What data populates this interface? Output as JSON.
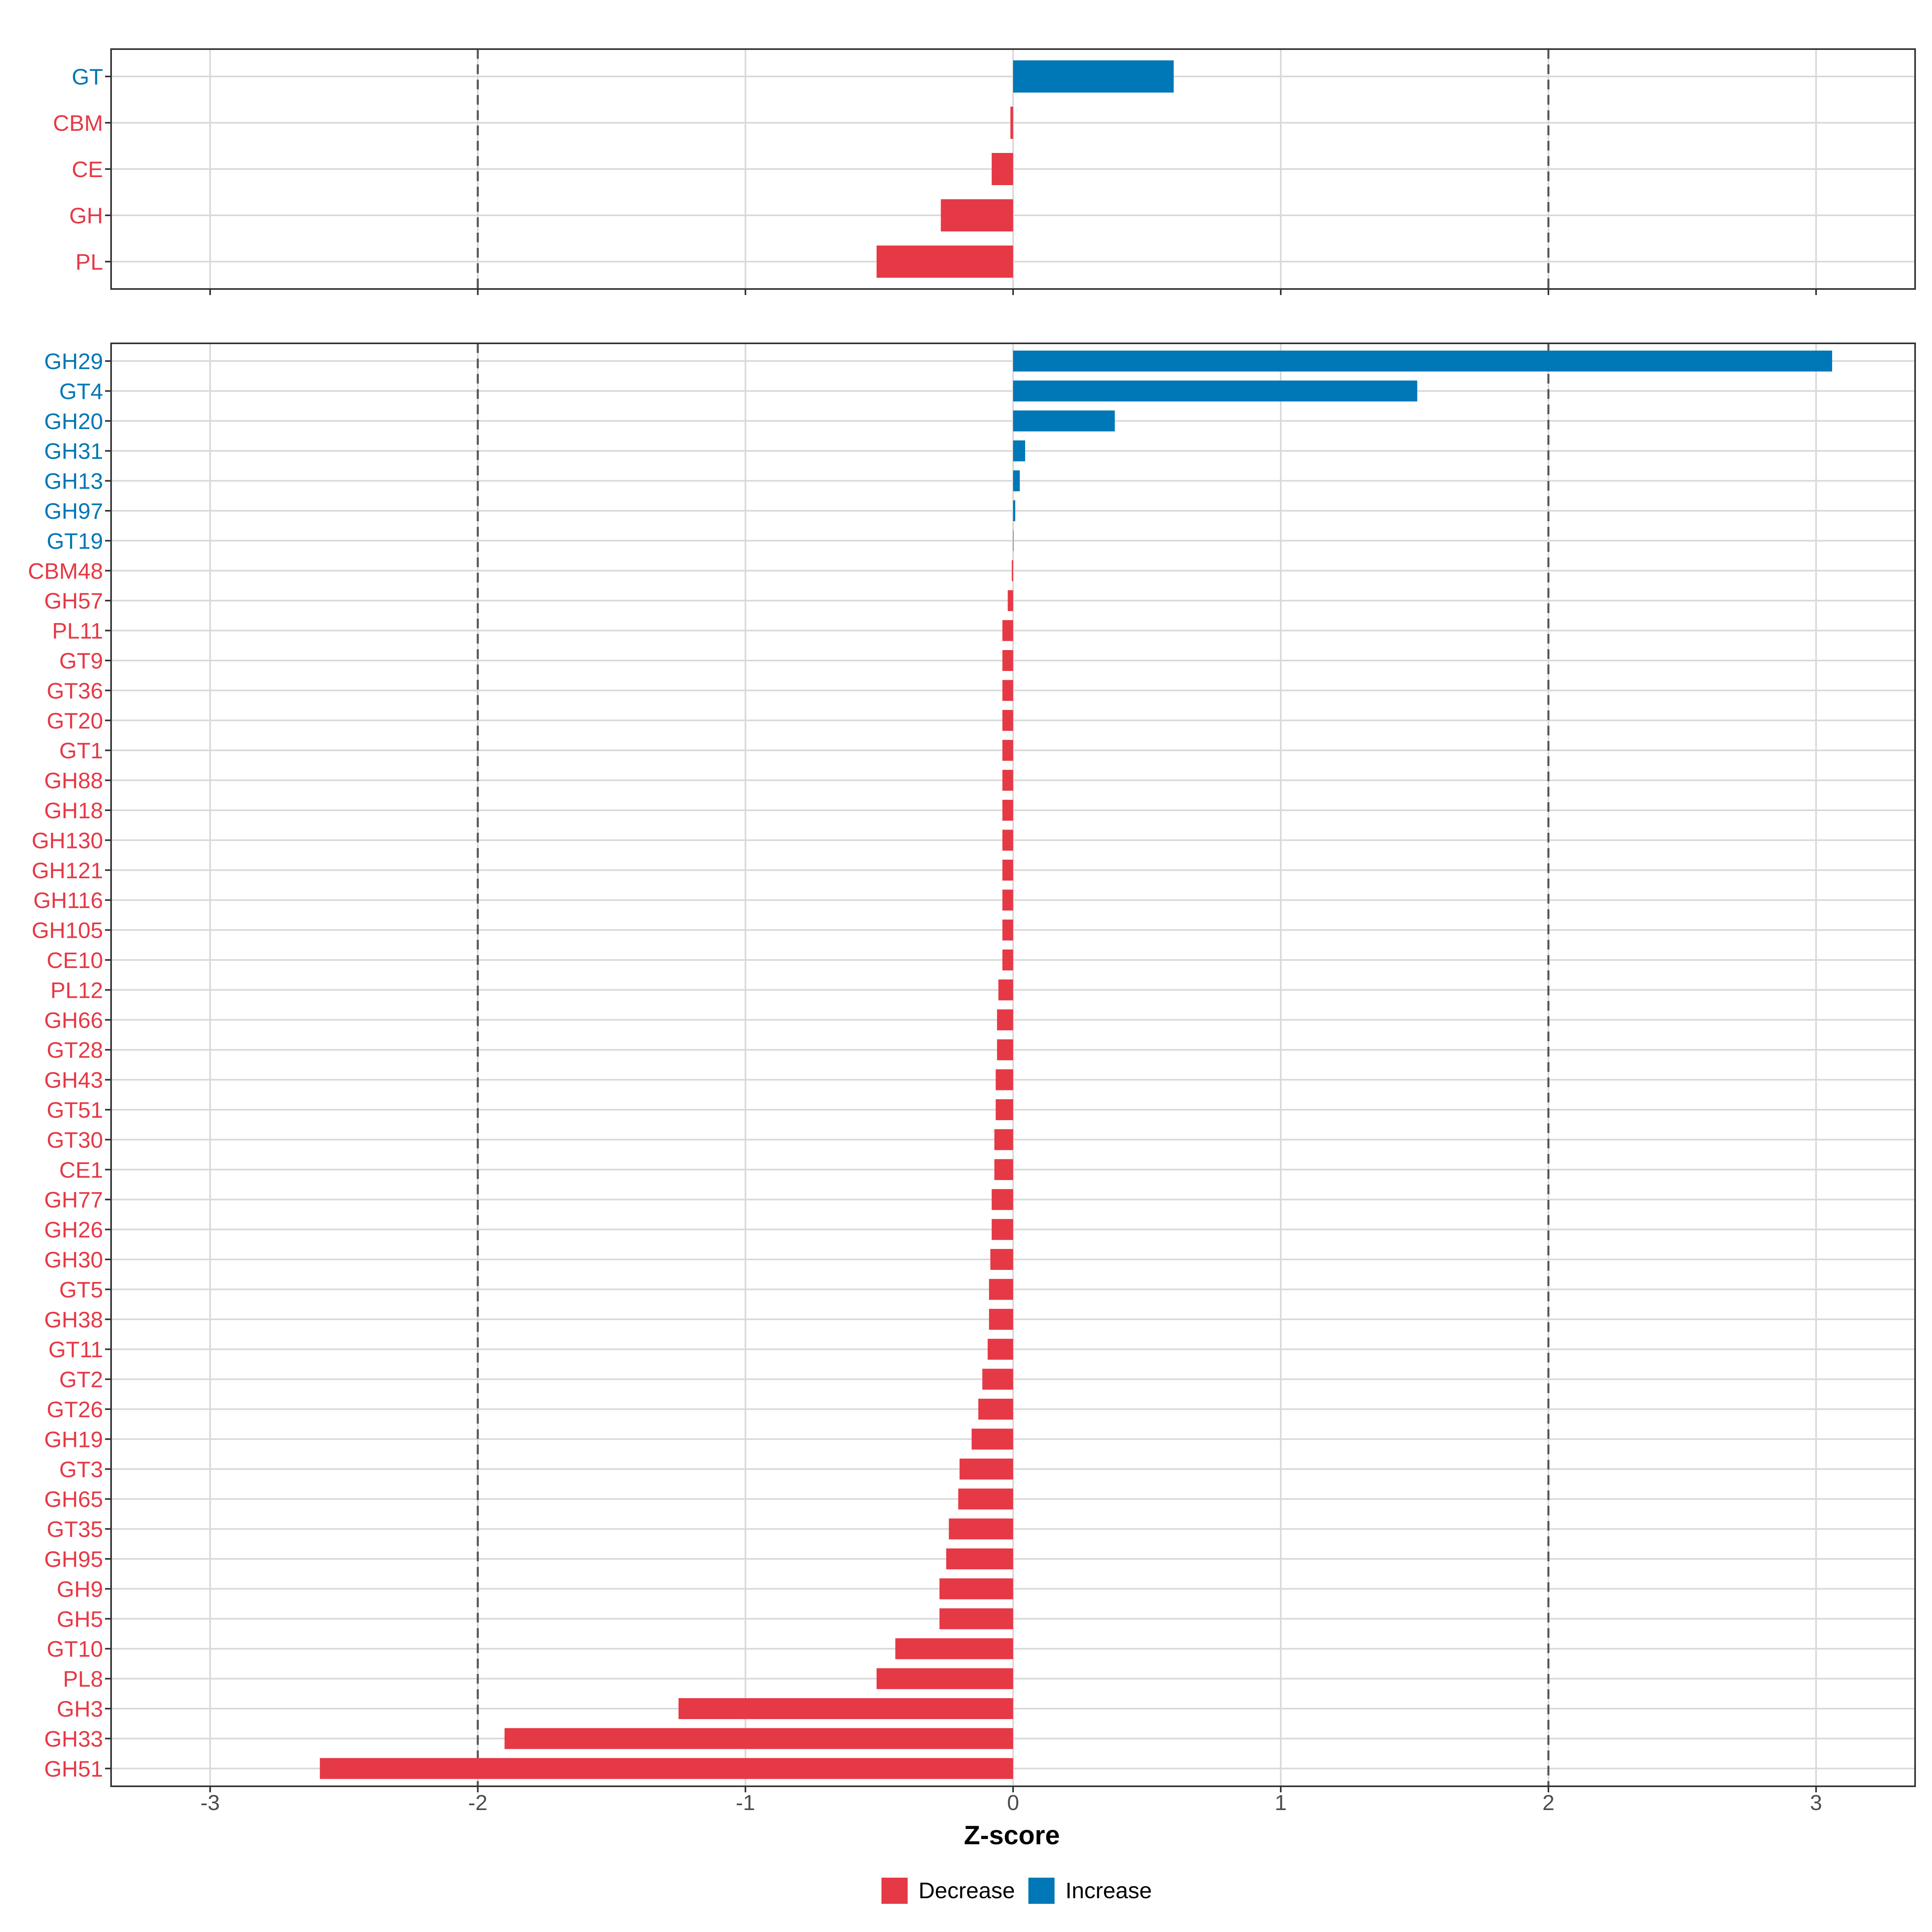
{
  "chart_data": [
    {
      "type": "bar",
      "orientation": "horizontal",
      "panel": "top",
      "categories": [
        "GT",
        "CBM",
        "CE",
        "GH",
        "PL"
      ],
      "values": [
        0.6,
        -0.01,
        -0.08,
        -0.27,
        -0.51
      ],
      "xlim": [
        -3.37,
        3.37
      ],
      "reference_lines": [
        -2,
        2
      ],
      "grid": true
    },
    {
      "type": "bar",
      "orientation": "horizontal",
      "panel": "bottom",
      "categories": [
        "GH29",
        "GT4",
        "GH20",
        "GH31",
        "GH13",
        "GH97",
        "GT19",
        "CBM48",
        "GH57",
        "PL11",
        "GT9",
        "GT36",
        "GT20",
        "GT1",
        "GH88",
        "GH18",
        "GH130",
        "GH121",
        "GH116",
        "GH105",
        "CE10",
        "PL12",
        "GH66",
        "GT28",
        "GH43",
        "GT51",
        "GT30",
        "CE1",
        "GH77",
        "GH26",
        "GH30",
        "GT5",
        "GH38",
        "GT11",
        "GT2",
        "GT26",
        "GH19",
        "GT3",
        "GH65",
        "GT35",
        "GH95",
        "GH9",
        "GH5",
        "GT10",
        "PL8",
        "GH3",
        "GH33",
        "GH51"
      ],
      "values": [
        3.06,
        1.51,
        0.38,
        0.045,
        0.025,
        0.008,
        0.0,
        -0.005,
        -0.02,
        -0.04,
        -0.04,
        -0.04,
        -0.04,
        -0.04,
        -0.04,
        -0.04,
        -0.04,
        -0.04,
        -0.04,
        -0.04,
        -0.04,
        -0.055,
        -0.06,
        -0.06,
        -0.065,
        -0.065,
        -0.07,
        -0.07,
        -0.08,
        -0.08,
        -0.085,
        -0.09,
        -0.09,
        -0.095,
        -0.115,
        -0.13,
        -0.155,
        -0.2,
        -0.205,
        -0.24,
        -0.25,
        -0.275,
        -0.275,
        -0.44,
        -0.51,
        -1.25,
        -1.9,
        -2.59
      ],
      "xlim": [
        -3.37,
        3.37
      ],
      "reference_lines": [
        -2,
        2
      ],
      "grid": true
    }
  ],
  "axis": {
    "xlabel": "Z-score",
    "xticks": [
      -3,
      -2,
      -1,
      0,
      1,
      2,
      3
    ],
    "xtick_labels": [
      "-3",
      "-2",
      "-1",
      "0",
      "1",
      "2",
      "3"
    ]
  },
  "legend": {
    "placement": "bottom",
    "items": [
      {
        "label": "Decrease",
        "color": "#e63946"
      },
      {
        "label": "Increase",
        "color": "#0077b6"
      }
    ]
  },
  "colors": {
    "increase": "#0077b6",
    "decrease": "#e63946",
    "grid": "#d9d9d9",
    "reference": "#555555",
    "frame": "#333333",
    "tick_text": "#4d4d4d"
  }
}
